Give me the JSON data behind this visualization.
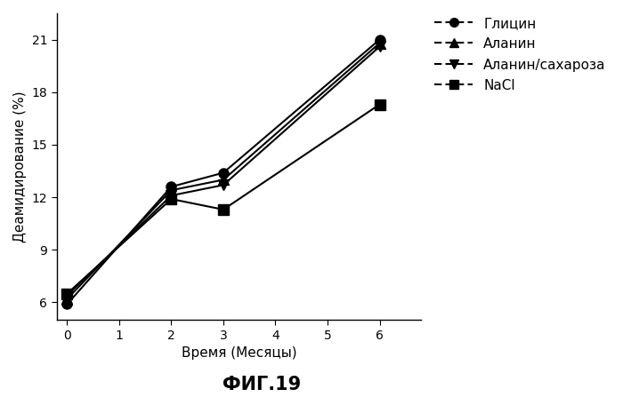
{
  "series": {
    "Глицин": {
      "x": [
        0,
        2,
        3,
        6
      ],
      "y": [
        5.9,
        12.6,
        13.4,
        21.0
      ],
      "marker": "o",
      "color": "#000000"
    },
    "Аланин": {
      "x": [
        0,
        2,
        3,
        6
      ],
      "y": [
        6.2,
        12.4,
        13.0,
        20.8
      ],
      "marker": "^",
      "color": "#000000"
    },
    "Аланин/сахароза": {
      "x": [
        0,
        2,
        3,
        6
      ],
      "y": [
        6.4,
        12.1,
        12.7,
        20.6
      ],
      "marker": "v",
      "color": "#000000"
    },
    "NaCl": {
      "x": [
        0,
        2,
        3,
        6
      ],
      "y": [
        6.5,
        11.9,
        11.3,
        17.3
      ],
      "marker": "s",
      "color": "#000000"
    }
  },
  "xlabel": "Время (Месяцы)",
  "ylabel": "Деамидирование (%)",
  "xlim": [
    -0.2,
    6.8
  ],
  "ylim": [
    5.0,
    22.5
  ],
  "xticks": [
    0,
    1,
    2,
    3,
    4,
    5,
    6
  ],
  "yticks": [
    6,
    9,
    12,
    15,
    18,
    21
  ],
  "caption": "ФИГ.19",
  "markersize": 8,
  "linewidth": 1.5,
  "legend_order": [
    "Глицин",
    "Аланин",
    "Аланин/сахароза",
    "NaCl"
  ],
  "legend_markers": [
    "o",
    "^",
    "v",
    "s"
  ],
  "figsize": [
    7.0,
    4.47
  ],
  "dpi": 100
}
